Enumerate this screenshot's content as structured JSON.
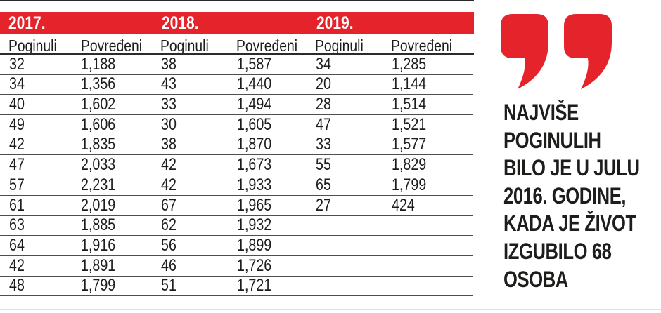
{
  "colors": {
    "accent_red": "#e4232b",
    "ink": "#1d1d1b",
    "row_rule": "#4f4f4f",
    "bottom_rule": "#e2e2e2"
  },
  "chart_data": {
    "type": "table",
    "years": [
      "2017.",
      "2018.",
      "2019."
    ],
    "column_headers": [
      "Poginuli",
      "Povređeni",
      "Poginuli",
      "Povređeni",
      "Poginuli",
      "Povređeni"
    ],
    "rows": [
      [
        "32",
        "1,188",
        "38",
        "1,587",
        "34",
        "1,285"
      ],
      [
        "34",
        "1,356",
        "43",
        "1,440",
        "20",
        "1,144"
      ],
      [
        "40",
        "1,602",
        "33",
        "1,494",
        "28",
        "1,514"
      ],
      [
        "49",
        "1,606",
        "30",
        "1,605",
        "47",
        "1,521"
      ],
      [
        "42",
        "1,835",
        "38",
        "1,870",
        "33",
        "1,577"
      ],
      [
        "47",
        "2,033",
        "42",
        "1,673",
        "55",
        "1,829"
      ],
      [
        "57",
        "2,231",
        "42",
        "1,933",
        "65",
        "1,799"
      ],
      [
        "61",
        "2,019",
        "67",
        "1,965",
        "27",
        "424"
      ],
      [
        "63",
        "1,885",
        "62",
        "1,932",
        "",
        ""
      ],
      [
        "64",
        "1,916",
        "56",
        "1,899",
        "",
        ""
      ],
      [
        "42",
        "1,891",
        "46",
        "1,726",
        "",
        ""
      ],
      [
        "48",
        "1,799",
        "51",
        "1,721",
        "",
        ""
      ]
    ],
    "series": [
      {
        "year": "2017.",
        "poginuli": [
          32,
          34,
          40,
          49,
          42,
          47,
          57,
          61,
          63,
          64,
          42,
          48
        ],
        "povredjeni": [
          1188,
          1356,
          1602,
          1606,
          1835,
          2033,
          2231,
          2019,
          1885,
          1916,
          1891,
          1799
        ]
      },
      {
        "year": "2018.",
        "poginuli": [
          38,
          43,
          33,
          30,
          38,
          42,
          42,
          67,
          62,
          56,
          46,
          51
        ],
        "povredjeni": [
          1587,
          1440,
          1494,
          1605,
          1870,
          1673,
          1933,
          1965,
          1932,
          1899,
          1726,
          1721
        ]
      },
      {
        "year": "2019.",
        "poginuli": [
          34,
          20,
          28,
          47,
          33,
          55,
          65,
          27
        ],
        "povredjeni": [
          1285,
          1144,
          1514,
          1521,
          1577,
          1829,
          1799,
          424
        ]
      }
    ]
  },
  "quote": {
    "text": "NAJVIŠE POGINULIH BILO JE U JULU 2016. GODINE, KADA JE ŽIVOT IZGUBILO 68 OSOBA",
    "lines": [
      "NAJVIŠE",
      "POGINULIH",
      "BILO JE U JULU",
      "2016. GODINE,",
      "KADA JE ŽIVOT",
      "IZGUBILO 68",
      "OSOBA"
    ]
  }
}
